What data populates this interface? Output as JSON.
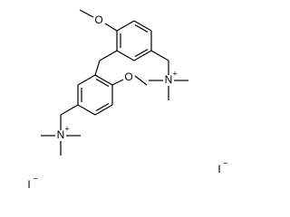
{
  "atoms": [
    {
      "label": "O"
    },
    {
      "label": "O"
    },
    {
      "label": "N",
      "charge": "+"
    },
    {
      "label": "N",
      "charge": "+"
    }
  ],
  "ions": [
    {
      "label": "I",
      "charge": "−"
    },
    {
      "label": "I",
      "charge": "−"
    }
  ]
}
